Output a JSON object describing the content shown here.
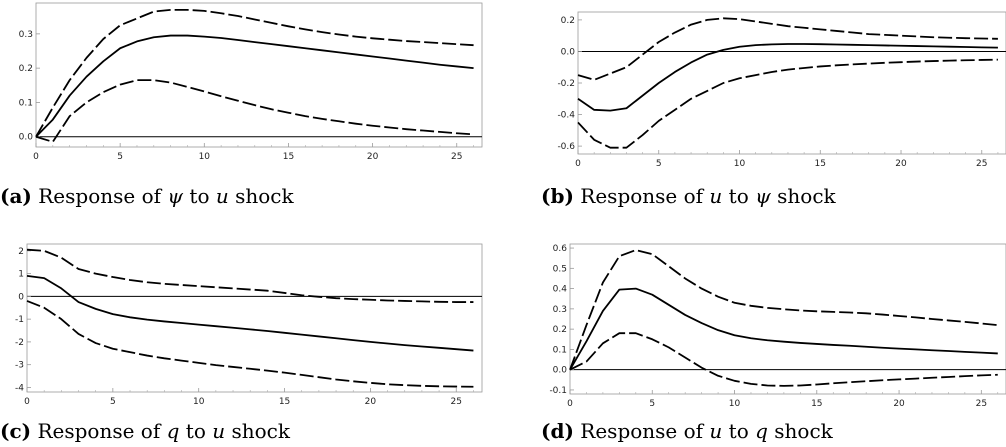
{
  "chart_data": [
    {
      "type": "line",
      "caption": {
        "label": "(a)",
        "prefix": "Response of ",
        "v1": "ψ",
        "mid": " to ",
        "v2": "u",
        "suffix": " shock"
      },
      "xlim": [
        0,
        26.5
      ],
      "ylim": [
        -0.03,
        0.39
      ],
      "xticks": [
        0,
        5,
        10,
        15,
        20,
        25
      ],
      "xtick_labels": [
        "0",
        "5",
        "10",
        "15",
        "20",
        "25"
      ],
      "yticks": [
        0.0,
        0.1,
        0.2,
        0.3
      ],
      "ytick_labels": [
        "0.0",
        "0.1",
        "0.2",
        "0.3"
      ],
      "x": [
        0,
        1,
        2,
        3,
        4,
        5,
        6,
        7,
        8,
        9,
        10,
        11,
        12,
        13,
        14,
        15,
        16,
        17,
        18,
        19,
        20,
        21,
        22,
        23,
        24,
        25,
        26
      ],
      "series": [
        {
          "style": "dashed",
          "values": [
            0.0,
            0.085,
            0.165,
            0.23,
            0.285,
            0.325,
            0.345,
            0.365,
            0.37,
            0.37,
            0.367,
            0.36,
            0.352,
            0.342,
            0.332,
            0.322,
            0.313,
            0.305,
            0.298,
            0.292,
            0.287,
            0.283,
            0.279,
            0.276,
            0.273,
            0.27,
            0.267
          ]
        },
        {
          "style": "solid",
          "values": [
            0.0,
            0.05,
            0.12,
            0.175,
            0.22,
            0.258,
            0.278,
            0.29,
            0.295,
            0.295,
            0.292,
            0.288,
            0.282,
            0.276,
            0.27,
            0.264,
            0.258,
            0.252,
            0.246,
            0.24,
            0.234,
            0.228,
            0.222,
            0.216,
            0.21,
            0.205,
            0.2
          ]
        },
        {
          "style": "dashed",
          "values": [
            0.0,
            -0.015,
            0.06,
            0.1,
            0.13,
            0.152,
            0.165,
            0.165,
            0.158,
            0.145,
            0.132,
            0.118,
            0.105,
            0.092,
            0.08,
            0.07,
            0.06,
            0.052,
            0.045,
            0.038,
            0.032,
            0.027,
            0.022,
            0.018,
            0.014,
            0.01,
            0.007
          ]
        }
      ]
    },
    {
      "type": "line",
      "caption": {
        "label": "(b)",
        "prefix": "Response of ",
        "v1": "u",
        "mid": " to ",
        "v2": "ψ",
        "suffix": " shock"
      },
      "xlim": [
        0,
        26.5
      ],
      "ylim": [
        -0.65,
        0.25
      ],
      "xticks": [
        0,
        5,
        10,
        15,
        20,
        25
      ],
      "xtick_labels": [
        "0",
        "5",
        "10",
        "15",
        "20",
        "25"
      ],
      "yticks": [
        -0.6,
        -0.4,
        -0.2,
        0.0,
        0.2
      ],
      "ytick_labels": [
        "-0.6",
        "-0.4",
        "-0.2",
        "0.0",
        "0.2"
      ],
      "x": [
        0,
        1,
        2,
        3,
        4,
        5,
        6,
        7,
        8,
        9,
        10,
        11,
        12,
        13,
        14,
        15,
        16,
        17,
        18,
        19,
        20,
        21,
        22,
        23,
        24,
        25,
        26
      ],
      "series": [
        {
          "style": "dashed",
          "values": [
            -0.15,
            -0.18,
            -0.14,
            -0.1,
            -0.02,
            0.06,
            0.12,
            0.17,
            0.2,
            0.21,
            0.205,
            0.19,
            0.175,
            0.16,
            0.15,
            0.14,
            0.13,
            0.12,
            0.11,
            0.105,
            0.1,
            0.095,
            0.09,
            0.087,
            0.084,
            0.082,
            0.08
          ]
        },
        {
          "style": "solid",
          "values": [
            -0.3,
            -0.37,
            -0.375,
            -0.36,
            -0.28,
            -0.2,
            -0.13,
            -0.07,
            -0.02,
            0.01,
            0.03,
            0.04,
            0.045,
            0.047,
            0.047,
            0.046,
            0.044,
            0.042,
            0.04,
            0.038,
            0.036,
            0.034,
            0.032,
            0.03,
            0.028,
            0.026,
            0.024
          ]
        },
        {
          "style": "dashed",
          "values": [
            -0.45,
            -0.56,
            -0.61,
            -0.61,
            -0.53,
            -0.44,
            -0.37,
            -0.3,
            -0.25,
            -0.2,
            -0.17,
            -0.15,
            -0.13,
            -0.115,
            -0.105,
            -0.095,
            -0.088,
            -0.082,
            -0.077,
            -0.072,
            -0.068,
            -0.064,
            -0.061,
            -0.058,
            -0.056,
            -0.054,
            -0.052
          ]
        }
      ]
    },
    {
      "type": "line",
      "caption": {
        "label": "(c)",
        "prefix": "Response of ",
        "v1": "q",
        "mid": " to ",
        "v2": "u",
        "suffix": " shock"
      },
      "xlim": [
        0,
        26.5
      ],
      "ylim": [
        -4.2,
        2.3
      ],
      "xticks": [
        0,
        5,
        10,
        15,
        20,
        25
      ],
      "xtick_labels": [
        "0",
        "5",
        "10",
        "15",
        "20",
        "25"
      ],
      "yticks": [
        -4,
        -3,
        -2,
        -1,
        0,
        1,
        2
      ],
      "ytick_labels": [
        "-4",
        "-3",
        "-2",
        "-1",
        "0",
        "1",
        "2"
      ],
      "x": [
        0,
        1,
        2,
        3,
        4,
        5,
        6,
        7,
        8,
        9,
        10,
        11,
        12,
        13,
        14,
        15,
        16,
        17,
        18,
        19,
        20,
        21,
        22,
        23,
        24,
        25,
        26
      ],
      "series": [
        {
          "style": "dashed",
          "values": [
            2.05,
            2.0,
            1.7,
            1.2,
            1.0,
            0.85,
            0.72,
            0.62,
            0.55,
            0.5,
            0.45,
            0.4,
            0.35,
            0.3,
            0.25,
            0.15,
            0.05,
            -0.02,
            -0.08,
            -0.12,
            -0.15,
            -0.18,
            -0.2,
            -0.22,
            -0.24,
            -0.25,
            -0.25
          ]
        },
        {
          "style": "solid",
          "values": [
            0.9,
            0.8,
            0.35,
            -0.25,
            -0.55,
            -0.78,
            -0.92,
            -1.02,
            -1.1,
            -1.17,
            -1.24,
            -1.31,
            -1.38,
            -1.45,
            -1.52,
            -1.6,
            -1.68,
            -1.76,
            -1.84,
            -1.92,
            -2.0,
            -2.07,
            -2.14,
            -2.2,
            -2.26,
            -2.32,
            -2.38
          ]
        },
        {
          "style": "dashed",
          "values": [
            -0.2,
            -0.5,
            -1.0,
            -1.65,
            -2.05,
            -2.3,
            -2.45,
            -2.6,
            -2.72,
            -2.82,
            -2.92,
            -3.02,
            -3.1,
            -3.18,
            -3.26,
            -3.35,
            -3.45,
            -3.55,
            -3.65,
            -3.73,
            -3.8,
            -3.86,
            -3.9,
            -3.93,
            -3.95,
            -3.96,
            -3.97
          ]
        }
      ]
    },
    {
      "type": "line",
      "caption": {
        "label": "(d)",
        "prefix": "Response of ",
        "v1": "u",
        "mid": " to ",
        "v2": "q",
        "suffix": " shock"
      },
      "xlim": [
        0,
        26.5
      ],
      "ylim": [
        -0.12,
        0.62
      ],
      "xticks": [
        0,
        5,
        10,
        15,
        20,
        25
      ],
      "xtick_labels": [
        "0",
        "5",
        "10",
        "15",
        "20",
        "25"
      ],
      "yticks": [
        -0.1,
        0.0,
        0.1,
        0.2,
        0.3,
        0.4,
        0.5,
        0.6
      ],
      "ytick_labels": [
        "-0.1",
        "0.0",
        "0.1",
        "0.2",
        "0.3",
        "0.4",
        "0.5",
        "0.6"
      ],
      "x": [
        0,
        1,
        2,
        3,
        4,
        5,
        6,
        7,
        8,
        9,
        10,
        11,
        12,
        13,
        14,
        15,
        16,
        17,
        18,
        19,
        20,
        21,
        22,
        23,
        24,
        25,
        26
      ],
      "series": [
        {
          "style": "dashed",
          "values": [
            0.0,
            0.22,
            0.43,
            0.56,
            0.59,
            0.57,
            0.51,
            0.45,
            0.4,
            0.36,
            0.33,
            0.315,
            0.305,
            0.298,
            0.292,
            0.288,
            0.285,
            0.282,
            0.278,
            0.272,
            0.265,
            0.258,
            0.25,
            0.243,
            0.236,
            0.228,
            0.22
          ]
        },
        {
          "style": "solid",
          "values": [
            0.0,
            0.14,
            0.29,
            0.395,
            0.4,
            0.37,
            0.32,
            0.27,
            0.23,
            0.195,
            0.17,
            0.155,
            0.145,
            0.138,
            0.132,
            0.127,
            0.122,
            0.118,
            0.113,
            0.108,
            0.104,
            0.1,
            0.096,
            0.092,
            0.088,
            0.084,
            0.08
          ]
        },
        {
          "style": "dashed",
          "values": [
            0.0,
            0.04,
            0.13,
            0.18,
            0.18,
            0.15,
            0.11,
            0.06,
            0.01,
            -0.03,
            -0.055,
            -0.07,
            -0.078,
            -0.08,
            -0.078,
            -0.073,
            -0.067,
            -0.062,
            -0.057,
            -0.052,
            -0.048,
            -0.044,
            -0.04,
            -0.036,
            -0.032,
            -0.028,
            -0.025
          ]
        }
      ]
    }
  ]
}
